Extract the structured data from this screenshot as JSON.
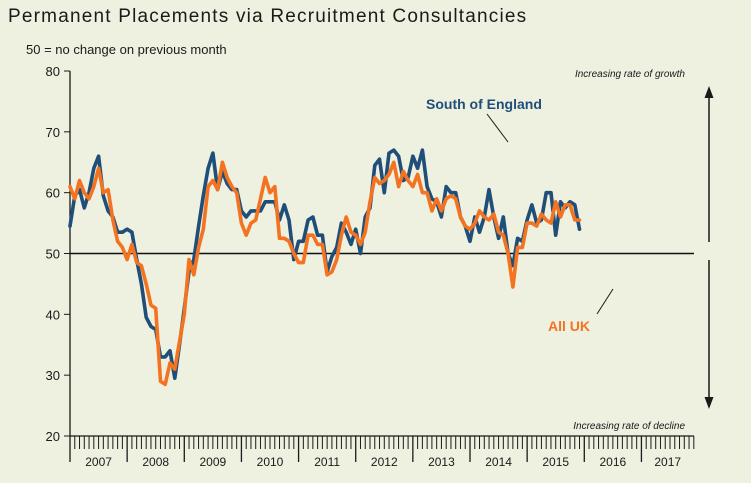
{
  "chart_data": {
    "type": "line",
    "title": "Permanent Placements via Recruitment Consultancies",
    "subtitle": "50 = no change on previous month",
    "ylim": [
      20,
      80
    ],
    "yticks": [
      20,
      30,
      40,
      50,
      60,
      70,
      80
    ],
    "reference_line": 50,
    "xlim": [
      2007.0,
      2017.92
    ],
    "years": [
      "2007",
      "2008",
      "2009",
      "2010",
      "2011",
      "2012",
      "2013",
      "2014",
      "2015",
      "2016",
      "2017"
    ],
    "annotations": {
      "growth": "Increasing rate of growth",
      "decline": "Increasing rate of decline"
    },
    "colors": {
      "background": "#eef0e0",
      "south": "#1f4e79",
      "uk": "#f47321"
    },
    "series": [
      {
        "name": "South of England",
        "color": "#1f4e79",
        "x_start": 2007.0,
        "step": 0.0833333,
        "values": [
          54.5,
          59.5,
          60.5,
          57.5,
          60.0,
          64.0,
          66.0,
          59.5,
          57.0,
          56.0,
          53.5,
          53.5,
          54.0,
          53.5,
          49.0,
          45.0,
          39.5,
          38.0,
          37.5,
          33.0,
          33.0,
          34.0,
          29.5,
          35.0,
          41.0,
          47.0,
          49.0,
          54.5,
          59.5,
          64.0,
          66.5,
          60.5,
          63.5,
          61.5,
          60.5,
          60.5,
          57.0,
          56.0,
          57.0,
          57.0,
          57.0,
          58.5,
          58.5,
          58.5,
          55.5,
          58.0,
          55.5,
          49.0,
          52.0,
          52.0,
          55.5,
          56.0,
          53.0,
          53.0,
          47.0,
          49.5,
          51.0,
          55.0,
          53.5,
          51.5,
          54.0,
          50.0,
          56.0,
          57.5,
          64.5,
          65.5,
          60.0,
          66.5,
          67.0,
          66.0,
          62.0,
          62.5,
          66.0,
          64.0,
          67.0,
          61.0,
          59.0,
          58.5,
          56.0,
          61.0,
          60.0,
          60.0,
          56.0,
          54.5,
          52.0,
          56.0,
          53.5,
          56.0,
          60.5,
          56.0,
          52.5,
          56.0,
          50.0,
          48.0,
          52.5,
          52.0,
          55.5,
          58.0,
          55.0,
          55.5,
          60.0,
          60.0,
          53.0,
          58.5,
          57.5,
          58.5,
          58.0,
          54.0
        ]
      },
      {
        "name": "All UK",
        "color": "#f47321",
        "x_start": 2007.0,
        "step": 0.0833333,
        "values": [
          61.0,
          59.0,
          62.0,
          60.0,
          59.0,
          61.0,
          64.0,
          60.0,
          60.5,
          55.5,
          52.0,
          51.0,
          49.0,
          51.5,
          48.5,
          48.0,
          45.0,
          41.5,
          41.0,
          29.0,
          28.5,
          32.0,
          31.0,
          35.5,
          40.0,
          49.0,
          46.5,
          51.0,
          54.0,
          61.0,
          62.0,
          60.5,
          65.0,
          62.5,
          61.0,
          60.0,
          55.0,
          53.0,
          55.0,
          55.5,
          59.0,
          62.5,
          60.0,
          61.0,
          52.5,
          52.5,
          52.0,
          50.0,
          48.5,
          48.5,
          53.0,
          53.0,
          51.5,
          51.5,
          46.5,
          47.0,
          49.0,
          53.0,
          56.0,
          53.5,
          53.0,
          51.5,
          53.5,
          58.5,
          62.5,
          61.5,
          62.0,
          63.0,
          65.0,
          61.0,
          63.5,
          62.0,
          61.0,
          63.0,
          60.0,
          60.0,
          57.0,
          59.0,
          57.0,
          59.0,
          59.5,
          59.0,
          56.0,
          54.5,
          54.0,
          55.0,
          57.0,
          56.0,
          55.5,
          56.5,
          53.5,
          53.0,
          50.0,
          44.5,
          51.0,
          51.0,
          55.0,
          55.0,
          54.5,
          56.5,
          55.5,
          55.0,
          58.5,
          56.0,
          58.0,
          58.0,
          55.5,
          55.5
        ]
      }
    ]
  }
}
